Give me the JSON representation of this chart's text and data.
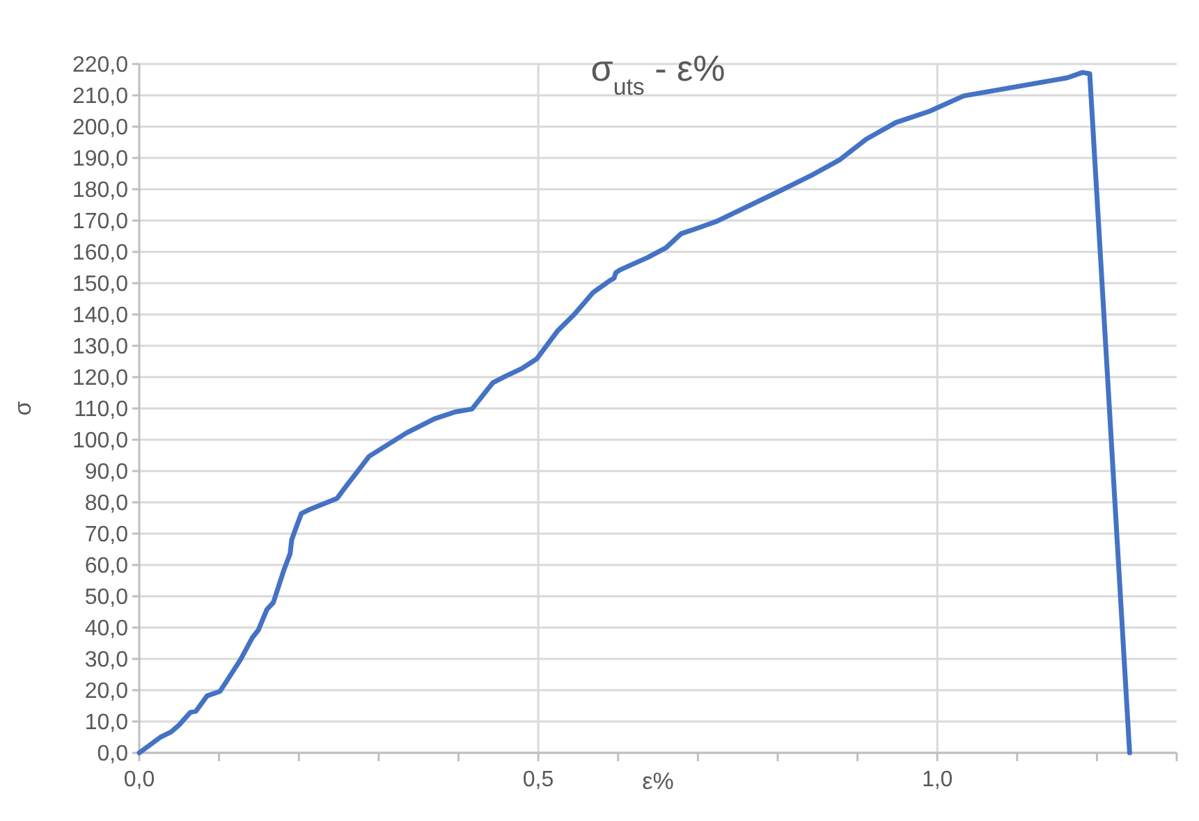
{
  "chart_data": {
    "type": "line",
    "title": "σ$_{uts}$ - ε%",
    "xlabel": "ε%",
    "ylabel": "σ",
    "x": [
      0,
      0.026,
      0.04,
      0.05,
      0.064,
      0.071,
      0.085,
      0.101,
      0.109,
      0.127,
      0.142,
      0.149,
      0.16,
      0.168,
      0.181,
      0.189,
      0.191,
      0.196,
      0.203,
      0.214,
      0.248,
      0.257,
      0.288,
      0.313,
      0.335,
      0.37,
      0.396,
      0.417,
      0.443,
      0.46,
      0.479,
      0.498,
      0.524,
      0.545,
      0.569,
      0.589,
      0.595,
      0.597,
      0.602,
      0.637,
      0.66,
      0.679,
      0.7,
      0.724,
      0.807,
      0.842,
      0.877,
      0.911,
      0.948,
      0.99,
      1.033,
      1.163,
      1.182,
      1.191,
      1.241
    ],
    "series": [
      {
        "color": "#4472c4",
        "values": [
          0,
          4.9,
          6.7,
          8.9,
          12.9,
          13.3,
          18.2,
          19.6,
          22.7,
          29.8,
          36.9,
          39.1,
          45.8,
          48,
          58.2,
          63.6,
          68,
          71.6,
          76.4,
          77.8,
          81.3,
          84.4,
          94.7,
          98.7,
          102.2,
          106.7,
          108.9,
          109.8,
          118.2,
          120.4,
          122.7,
          125.8,
          134.7,
          140,
          147.1,
          150.7,
          151.6,
          153.3,
          154.2,
          158.2,
          161.3,
          165.8,
          167.6,
          169.8,
          180,
          184.4,
          189.3,
          196,
          201.3,
          204.9,
          209.8,
          215.6,
          217.3,
          216.9,
          0
        ]
      }
    ],
    "xlim": [
      0,
      1.3
    ],
    "xticks": [
      {
        "value": 0,
        "label": "0,0"
      },
      {
        "value": 0.1,
        "label": null
      },
      {
        "value": 0.2,
        "label": null
      },
      {
        "value": 0.3,
        "label": null
      },
      {
        "value": 0.4,
        "label": null
      },
      {
        "value": 0.5,
        "label": "0,5"
      },
      {
        "value": 0.6,
        "label": null
      },
      {
        "value": 0.7,
        "label": null
      },
      {
        "value": 0.8,
        "label": null
      },
      {
        "value": 0.9,
        "label": null
      },
      {
        "value": 1,
        "label": "1,0"
      },
      {
        "value": 1.1,
        "label": null
      },
      {
        "value": 1.2,
        "label": null
      },
      {
        "value": 1.3,
        "label": null
      }
    ],
    "ylim": [
      0,
      220
    ],
    "yticks": [
      {
        "value": 0,
        "label": "0,0"
      },
      {
        "value": 10,
        "label": "10,0"
      },
      {
        "value": 20,
        "label": "20,0"
      },
      {
        "value": 30,
        "label": "30,0"
      },
      {
        "value": 40,
        "label": "40,0"
      },
      {
        "value": 50,
        "label": "50,0"
      },
      {
        "value": 60,
        "label": "60,0"
      },
      {
        "value": 70,
        "label": "70,0"
      },
      {
        "value": 80,
        "label": "80,0"
      },
      {
        "value": 90,
        "label": "90,0"
      },
      {
        "value": 100,
        "label": "100,0"
      },
      {
        "value": 110,
        "label": "110,0"
      },
      {
        "value": 120,
        "label": "120,0"
      },
      {
        "value": 130,
        "label": "130,0"
      },
      {
        "value": 140,
        "label": "140,0"
      },
      {
        "value": 150,
        "label": "150,0"
      },
      {
        "value": 160,
        "label": "160,0"
      },
      {
        "value": 170,
        "label": "170,0"
      },
      {
        "value": 180,
        "label": "180,0"
      },
      {
        "value": 190,
        "label": "190,0"
      },
      {
        "value": 200,
        "label": "200,0"
      },
      {
        "value": 210,
        "label": "210,0"
      },
      {
        "value": 220,
        "label": "220,0"
      }
    ],
    "grid": true
  }
}
